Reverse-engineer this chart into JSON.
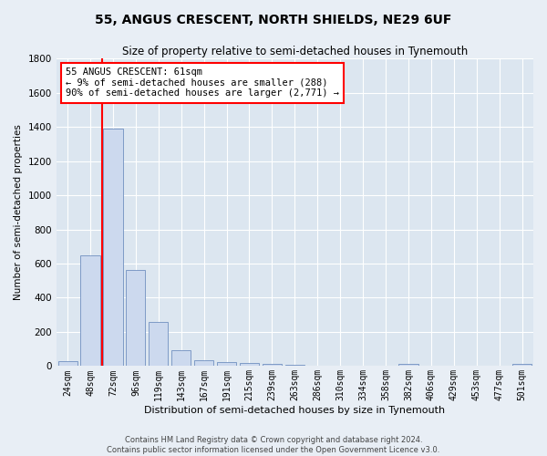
{
  "title1": "55, ANGUS CRESCENT, NORTH SHIELDS, NE29 6UF",
  "title2": "Size of property relative to semi-detached houses in Tynemouth",
  "xlabel": "Distribution of semi-detached houses by size in Tynemouth",
  "ylabel": "Number of semi-detached properties",
  "categories": [
    "24sqm",
    "48sqm",
    "72sqm",
    "96sqm",
    "119sqm",
    "143sqm",
    "167sqm",
    "191sqm",
    "215sqm",
    "239sqm",
    "263sqm",
    "286sqm",
    "310sqm",
    "334sqm",
    "358sqm",
    "382sqm",
    "406sqm",
    "429sqm",
    "453sqm",
    "477sqm",
    "501sqm"
  ],
  "values": [
    30,
    650,
    1390,
    560,
    260,
    95,
    35,
    22,
    18,
    15,
    5,
    0,
    0,
    0,
    0,
    15,
    0,
    0,
    0,
    0,
    15
  ],
  "bar_color": "#ccd9ee",
  "bar_edge_color": "#7090c0",
  "red_line_x": 1.5,
  "annotation_title": "55 ANGUS CRESCENT: 61sqm",
  "annotation_line1": "← 9% of semi-detached houses are smaller (288)",
  "annotation_line2": "90% of semi-detached houses are larger (2,771) →",
  "footer1": "Contains HM Land Registry data © Crown copyright and database right 2024.",
  "footer2": "Contains public sector information licensed under the Open Government Licence v3.0.",
  "ylim": [
    0,
    1800
  ],
  "background_color": "#e8eef5",
  "plot_bg_color": "#dce6f0",
  "grid_color": "#ffffff",
  "title1_fontsize": 10,
  "title2_fontsize": 8.5,
  "xlabel_fontsize": 8,
  "ylabel_fontsize": 7.5,
  "tick_fontsize": 7,
  "footer_fontsize": 6,
  "annotation_fontsize": 7.5
}
